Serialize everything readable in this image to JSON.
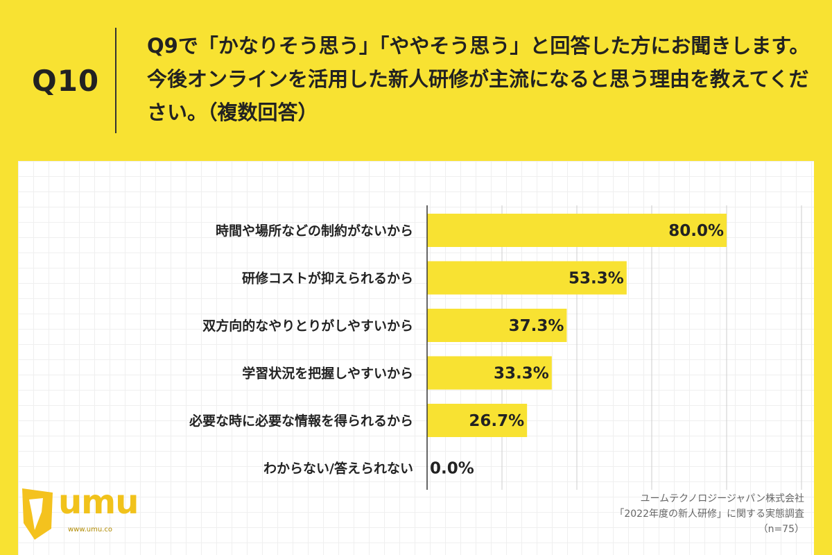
{
  "header": {
    "qnum": "Q10",
    "question": "Q9で「かなりそう思う」「ややそう思う」と回答した方にお聞きします。今後オンラインを活用した新人研修が主流になると思う理由を教えてください。（複数回答）"
  },
  "source": {
    "company": "ユームテクノロジージャパン株式会社",
    "survey": "「2022年度の新人研修」に関する実態調査",
    "n": "（n=75）"
  },
  "logo": {
    "text": "umu",
    "url": "www.umu.co"
  },
  "colors": {
    "background": "#f8e232",
    "bar": "#f8e232",
    "grid": "#cccccc",
    "axis": "#333333"
  },
  "chart_data": {
    "type": "bar",
    "orientation": "horizontal",
    "categories": [
      "時間や場所などの制約がないから",
      "研修コストが抑えられるから",
      "双方向的なやりとりがしやすいから",
      "学習状況を把握しやすいから",
      "必要な時に必要な情報を得られるから",
      "わからない/答えられない"
    ],
    "values": [
      80.0,
      53.3,
      37.3,
      33.3,
      26.7,
      0.0
    ],
    "value_labels": [
      "80.0%",
      "53.3%",
      "37.3%",
      "33.3%",
      "26.7%",
      "0.0%"
    ],
    "xlim": [
      0,
      100
    ],
    "grid": true,
    "legend": "none"
  }
}
